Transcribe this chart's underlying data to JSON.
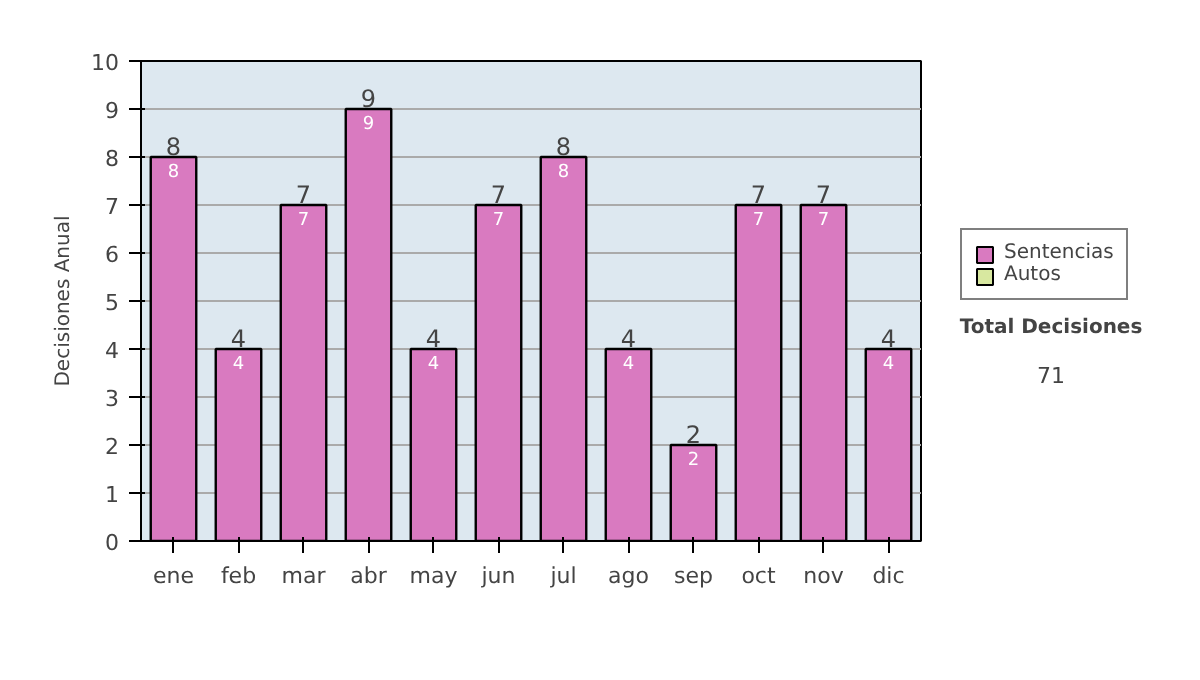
{
  "chart_data": {
    "type": "bar",
    "ylabel": "Decisiones Anual",
    "categories": [
      "ene",
      "feb",
      "mar",
      "abr",
      "may",
      "jun",
      "jul",
      "ago",
      "sep",
      "oct",
      "nov",
      "dic"
    ],
    "series": [
      {
        "name": "Sentencias",
        "color": "#d97ac0",
        "values": [
          8,
          4,
          7,
          9,
          4,
          7,
          8,
          4,
          2,
          7,
          7,
          4
        ]
      },
      {
        "name": "Autos",
        "color": "#d8e8a0",
        "values": [
          null,
          null,
          null,
          null,
          null,
          null,
          null,
          null,
          null,
          null,
          null,
          null
        ]
      }
    ],
    "stacked": true,
    "data_labels": true,
    "totals": [
      "8",
      "4",
      "7",
      "9",
      "4",
      "7",
      "8",
      "4",
      "2",
      "7",
      "7",
      "4"
    ],
    "ylim": [
      0,
      10
    ],
    "yticks": [
      0,
      1,
      2,
      3,
      4,
      5,
      6,
      7,
      8,
      9,
      10
    ],
    "grid": "y",
    "legend": "right",
    "annotations": [
      "Total Decisiones",
      "71"
    ]
  }
}
